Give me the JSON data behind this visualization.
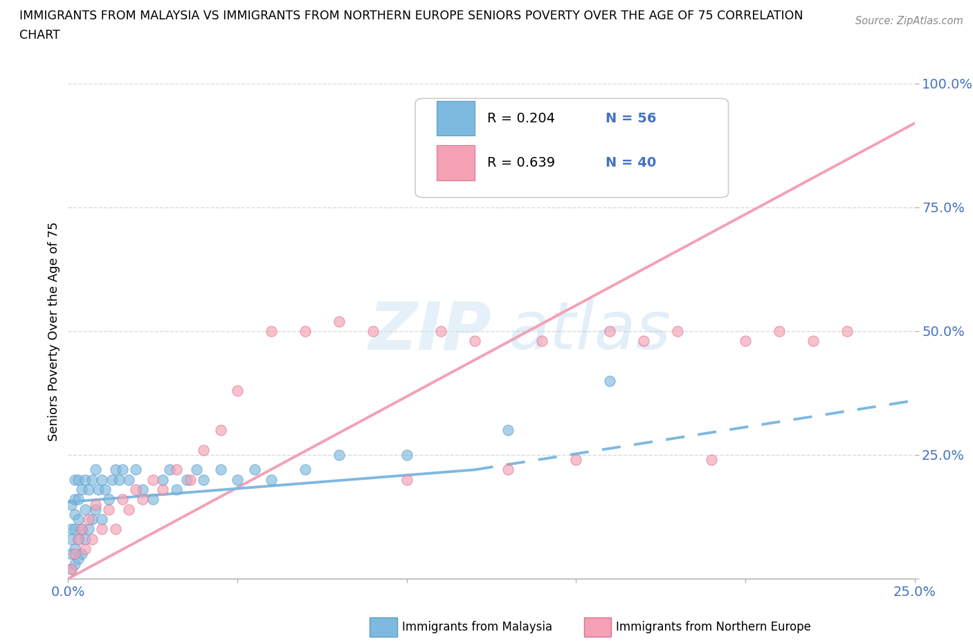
{
  "title_line1": "IMMIGRANTS FROM MALAYSIA VS IMMIGRANTS FROM NORTHERN EUROPE SENIORS POVERTY OVER THE AGE OF 75 CORRELATION",
  "title_line2": "CHART",
  "source": "Source: ZipAtlas.com",
  "ylabel": "Seniors Poverty Over the Age of 75",
  "x_min": 0.0,
  "x_max": 0.25,
  "y_min": 0.0,
  "y_max": 1.0,
  "xticks": [
    0.0,
    0.05,
    0.1,
    0.15,
    0.2,
    0.25
  ],
  "yticks": [
    0.0,
    0.25,
    0.5,
    0.75,
    1.0
  ],
  "blue_color": "#7eb9e0",
  "pink_color": "#f4a0b5",
  "blue_edge": "#5a9cc5",
  "pink_edge": "#e07090",
  "blue_label": "Immigrants from Malaysia",
  "pink_label": "Immigrants from Northern Europe",
  "watermark_zip": "ZIP",
  "watermark_atlas": "atlas",
  "blue_scatter_x": [
    0.001,
    0.001,
    0.001,
    0.001,
    0.001,
    0.002,
    0.002,
    0.002,
    0.002,
    0.002,
    0.002,
    0.003,
    0.003,
    0.003,
    0.003,
    0.003,
    0.004,
    0.004,
    0.004,
    0.005,
    0.005,
    0.005,
    0.006,
    0.006,
    0.007,
    0.007,
    0.008,
    0.008,
    0.009,
    0.01,
    0.01,
    0.011,
    0.012,
    0.013,
    0.014,
    0.015,
    0.016,
    0.018,
    0.02,
    0.022,
    0.025,
    0.028,
    0.03,
    0.032,
    0.035,
    0.038,
    0.04,
    0.045,
    0.05,
    0.055,
    0.06,
    0.07,
    0.08,
    0.1,
    0.13,
    0.16
  ],
  "blue_scatter_y": [
    0.02,
    0.05,
    0.08,
    0.1,
    0.15,
    0.03,
    0.06,
    0.1,
    0.13,
    0.16,
    0.2,
    0.04,
    0.08,
    0.12,
    0.16,
    0.2,
    0.05,
    0.1,
    0.18,
    0.08,
    0.14,
    0.2,
    0.1,
    0.18,
    0.12,
    0.2,
    0.14,
    0.22,
    0.18,
    0.12,
    0.2,
    0.18,
    0.16,
    0.2,
    0.22,
    0.2,
    0.22,
    0.2,
    0.22,
    0.18,
    0.16,
    0.2,
    0.22,
    0.18,
    0.2,
    0.22,
    0.2,
    0.22,
    0.2,
    0.22,
    0.2,
    0.22,
    0.25,
    0.25,
    0.3,
    0.4
  ],
  "pink_scatter_x": [
    0.001,
    0.002,
    0.003,
    0.004,
    0.005,
    0.006,
    0.007,
    0.008,
    0.01,
    0.012,
    0.014,
    0.016,
    0.018,
    0.02,
    0.022,
    0.025,
    0.028,
    0.032,
    0.036,
    0.04,
    0.045,
    0.05,
    0.06,
    0.07,
    0.08,
    0.09,
    0.1,
    0.11,
    0.12,
    0.13,
    0.14,
    0.15,
    0.16,
    0.17,
    0.18,
    0.19,
    0.2,
    0.21,
    0.22,
    0.23
  ],
  "pink_scatter_y": [
    0.02,
    0.05,
    0.08,
    0.1,
    0.06,
    0.12,
    0.08,
    0.15,
    0.1,
    0.14,
    0.1,
    0.16,
    0.14,
    0.18,
    0.16,
    0.2,
    0.18,
    0.22,
    0.2,
    0.26,
    0.3,
    0.38,
    0.5,
    0.5,
    0.52,
    0.5,
    0.2,
    0.5,
    0.48,
    0.22,
    0.48,
    0.24,
    0.5,
    0.48,
    0.5,
    0.24,
    0.48,
    0.5,
    0.48,
    0.5
  ],
  "blue_trend_x": [
    0.0,
    0.12,
    0.25
  ],
  "blue_trend_y": [
    0.155,
    0.22,
    0.36
  ],
  "pink_trend_x": [
    0.0,
    0.25
  ],
  "pink_trend_y": [
    0.0,
    0.92
  ],
  "background_color": "#ffffff",
  "grid_color": "#d0d0d0",
  "text_color_blue": "#4472c4",
  "tick_color": "#4472c4"
}
